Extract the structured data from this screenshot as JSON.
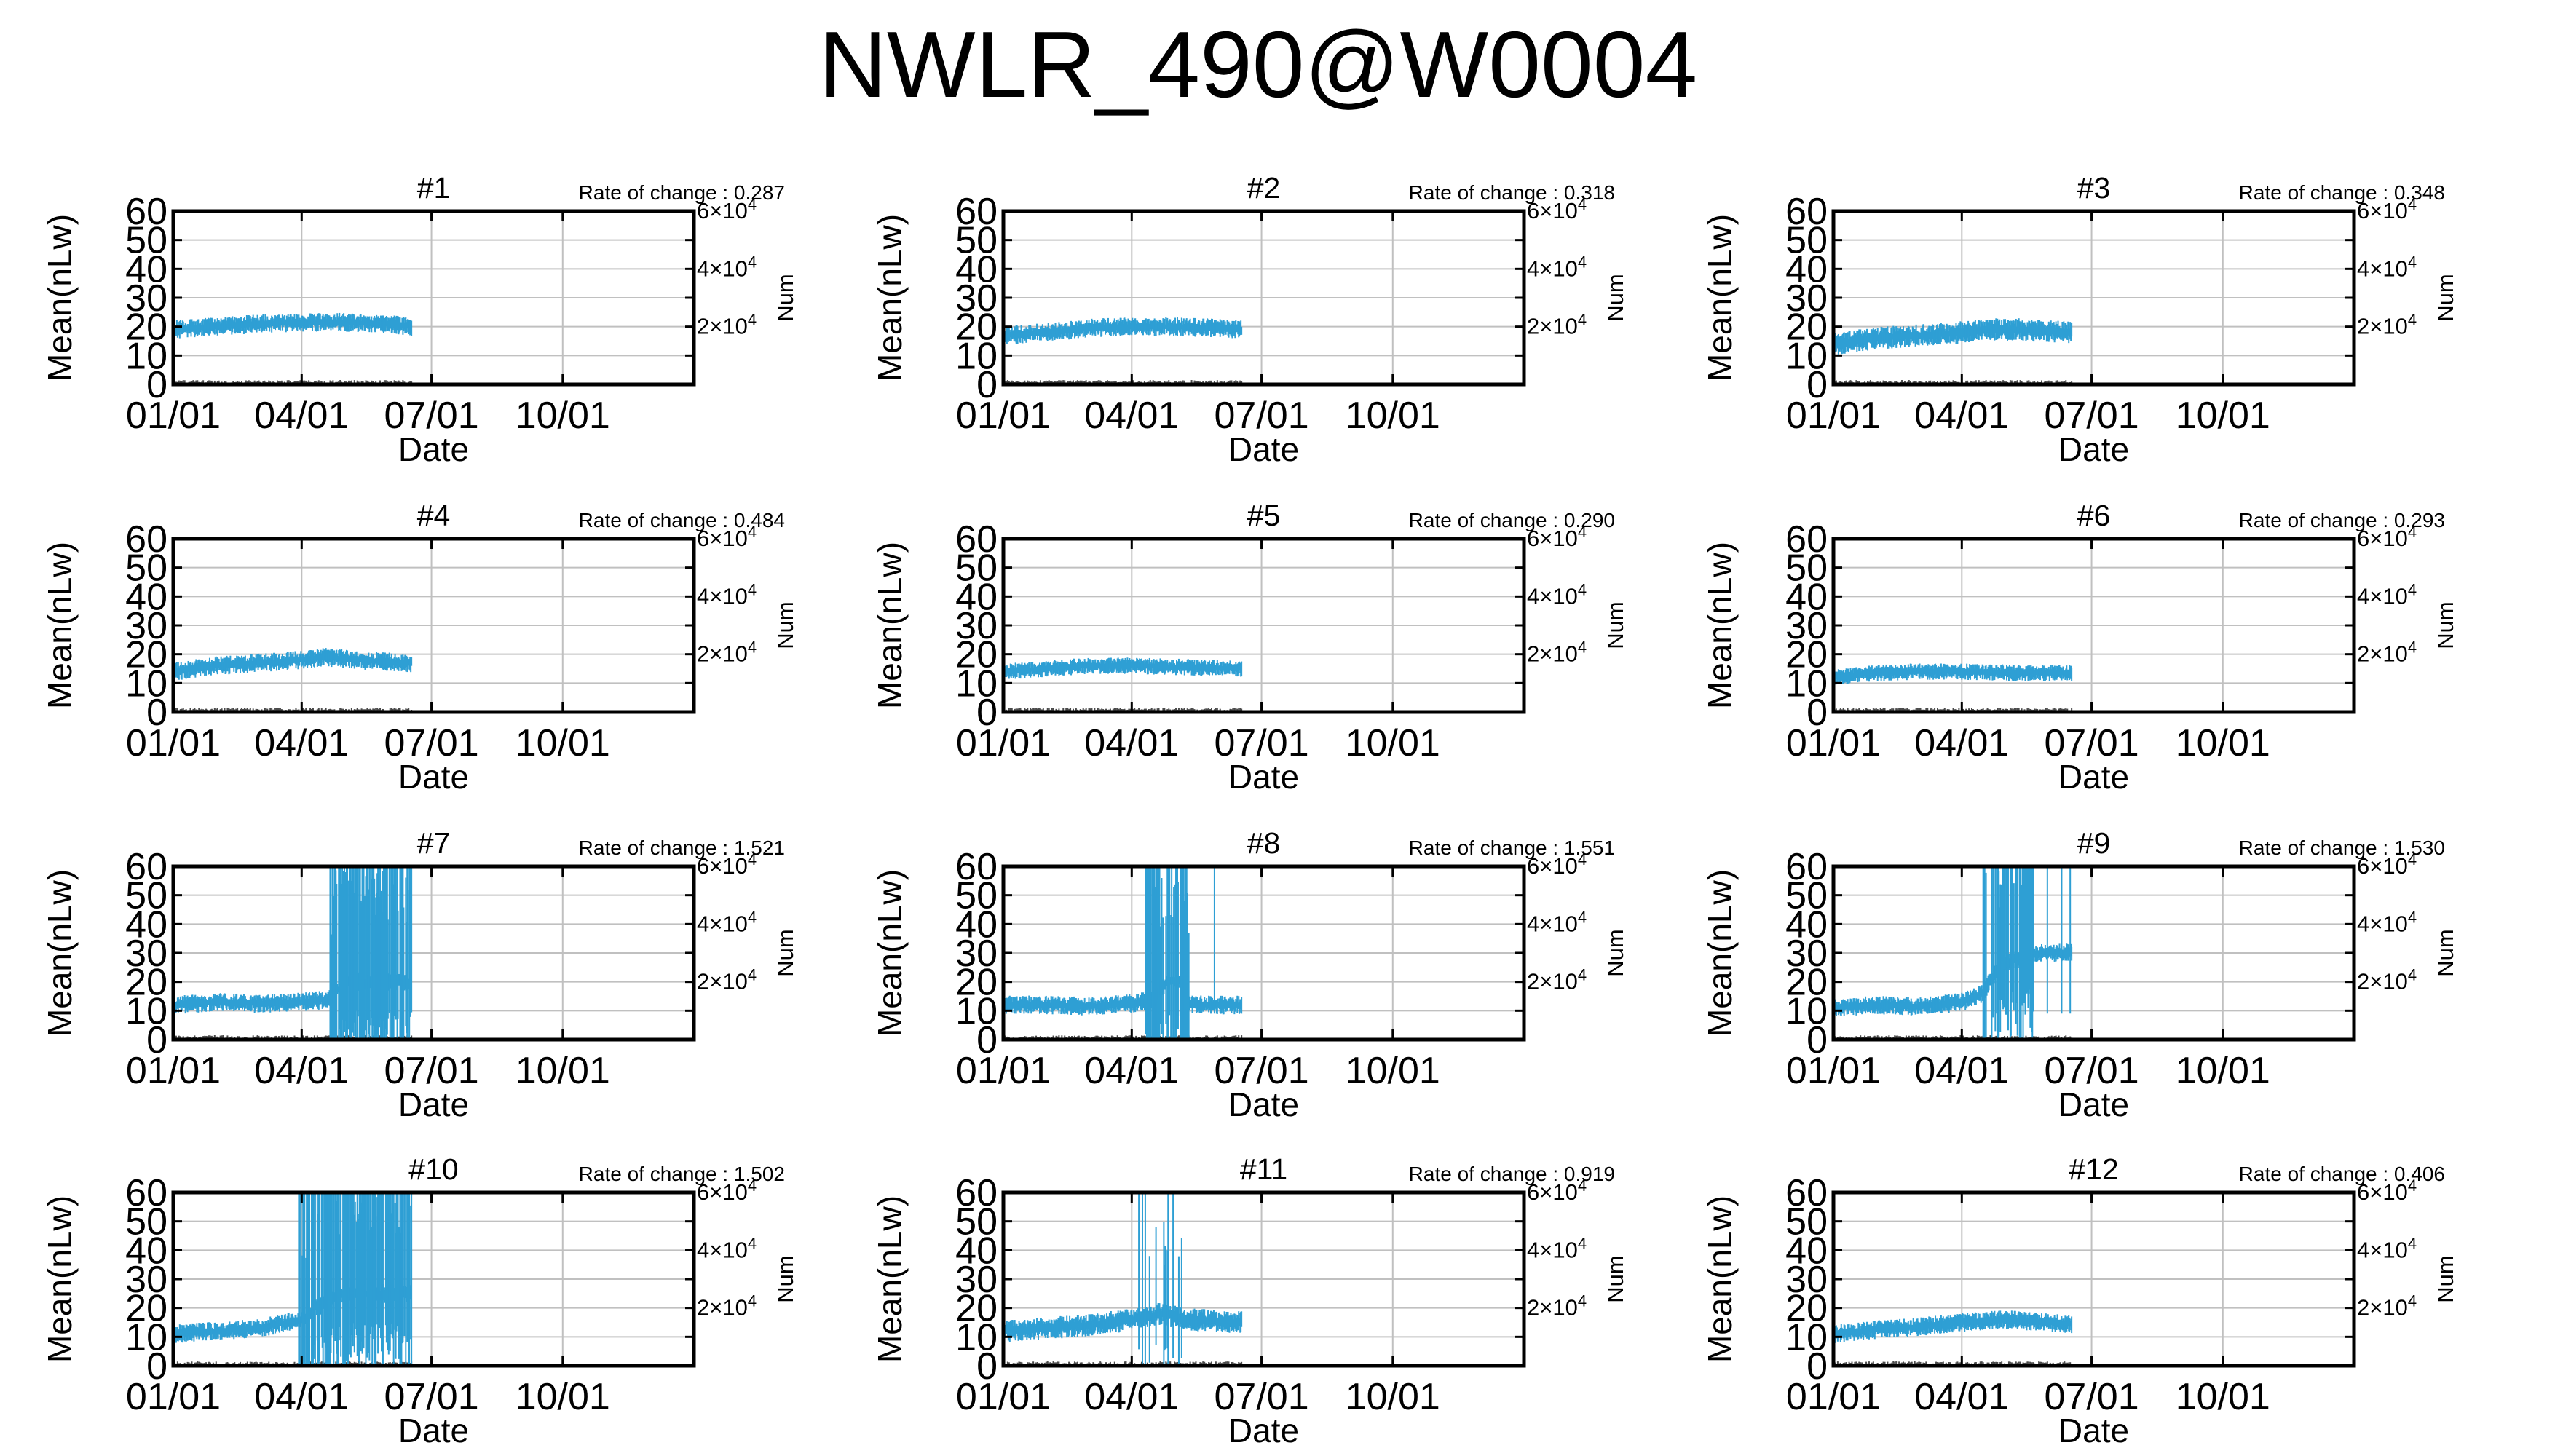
{
  "title": "NWLR_490@W0004",
  "colors": {
    "series": "#2e9fd4",
    "grid": "#c0c0c0",
    "frame": "#000000",
    "count": "#4a4a4a"
  },
  "axes": {
    "ylabel": "Mean(nLw)",
    "xlabel": "Date",
    "y2label": "Num",
    "y_ticks": [
      "0",
      "10",
      "20",
      "30",
      "40",
      "50",
      "60"
    ],
    "x_ticks": [
      "01/01",
      "04/01",
      "07/01",
      "10/01"
    ],
    "y2_ticks": [
      {
        "base": "2×10",
        "exp": "4"
      },
      {
        "base": "4×10",
        "exp": "4"
      },
      {
        "base": "6×10",
        "exp": "4"
      }
    ],
    "rate_prefix": "Rate of change : "
  },
  "chart_data": {
    "type": "line",
    "layout": "4x3 small multiples",
    "ylim": [
      0,
      60
    ],
    "y2lim": [
      0,
      60000
    ],
    "x_range_days": [
      0,
      365
    ],
    "x_ticks_days": [
      0,
      90,
      181,
      273
    ],
    "grid": true,
    "data_days": [
      0,
      167
    ],
    "panels": [
      {
        "name": "#1",
        "rate": "0.287",
        "profile": [
          [
            0,
            19
          ],
          [
            30,
            20
          ],
          [
            60,
            21
          ],
          [
            90,
            21.5
          ],
          [
            120,
            21.5
          ],
          [
            150,
            21
          ],
          [
            167,
            20
          ]
        ],
        "noise": 2.5,
        "spikes": [],
        "spike_window": [
          0,
          0
        ],
        "base_spike_density": 0
      },
      {
        "name": "#2",
        "rate": "0.318",
        "profile": [
          [
            0,
            17
          ],
          [
            30,
            18
          ],
          [
            60,
            19.5
          ],
          [
            90,
            20
          ],
          [
            120,
            20
          ],
          [
            150,
            19.5
          ],
          [
            167,
            19
          ]
        ],
        "noise": 2.5,
        "spikes": [],
        "spike_window": [
          0,
          0
        ],
        "base_spike_density": 0
      },
      {
        "name": "#3",
        "rate": "0.348",
        "profile": [
          [
            0,
            14
          ],
          [
            30,
            16
          ],
          [
            60,
            17
          ],
          [
            90,
            18
          ],
          [
            110,
            19
          ],
          [
            130,
            19
          ],
          [
            167,
            18
          ]
        ],
        "noise": 3,
        "spikes": [],
        "spike_window": [
          0,
          0
        ],
        "base_spike_density": 0
      },
      {
        "name": "#4",
        "rate": "0.484",
        "profile": [
          [
            0,
            14
          ],
          [
            30,
            16
          ],
          [
            60,
            17
          ],
          [
            90,
            18
          ],
          [
            105,
            19
          ],
          [
            130,
            18
          ],
          [
            167,
            17
          ]
        ],
        "noise": 2.5,
        "spikes": [],
        "spike_window": [
          0,
          0
        ],
        "base_spike_density": 0
      },
      {
        "name": "#5",
        "rate": "0.290",
        "profile": [
          [
            0,
            14
          ],
          [
            30,
            15
          ],
          [
            60,
            16
          ],
          [
            90,
            16
          ],
          [
            130,
            15.5
          ],
          [
            167,
            15
          ]
        ],
        "noise": 2.2,
        "spikes": [],
        "spike_window": [
          0,
          0
        ],
        "base_spike_density": 0
      },
      {
        "name": "#6",
        "rate": "0.293",
        "profile": [
          [
            0,
            12
          ],
          [
            30,
            13.5
          ],
          [
            60,
            14
          ],
          [
            90,
            14
          ],
          [
            130,
            13.5
          ],
          [
            167,
            13.5
          ]
        ],
        "noise": 2.2,
        "spikes": [],
        "spike_window": [
          0,
          0
        ],
        "base_spike_density": 0
      },
      {
        "name": "#7",
        "rate": "1.521",
        "profile": [
          [
            0,
            12
          ],
          [
            30,
            13
          ],
          [
            60,
            12.5
          ],
          [
            90,
            13
          ],
          [
            110,
            14
          ],
          [
            120,
            20
          ],
          [
            140,
            20
          ],
          [
            167,
            20
          ]
        ],
        "noise": 2.5,
        "spikes": [],
        "spike_window": [
          110,
          167
        ],
        "base_spike_density": 0.75
      },
      {
        "name": "#8",
        "rate": "1.551",
        "profile": [
          [
            0,
            12
          ],
          [
            30,
            12
          ],
          [
            60,
            11.5
          ],
          [
            90,
            12.5
          ],
          [
            105,
            14
          ],
          [
            115,
            20
          ],
          [
            125,
            20
          ],
          [
            130,
            12
          ]
        ],
        "noise": 2.5,
        "spikes": [
          [
            148,
            60
          ]
        ],
        "spike_window": [
          100,
          130
        ],
        "base_spike_density": 0.7
      },
      {
        "name": "#9",
        "rate": "1.530",
        "profile": [
          [
            0,
            11
          ],
          [
            30,
            12
          ],
          [
            60,
            11.5
          ],
          [
            90,
            13
          ],
          [
            105,
            16
          ],
          [
            115,
            25
          ],
          [
            140,
            30
          ],
          [
            167,
            30
          ]
        ],
        "noise": 2.5,
        "spikes": [
          [
            150,
            60
          ],
          [
            160,
            60
          ],
          [
            166,
            60
          ]
        ],
        "spike_window": [
          105,
          140
        ],
        "base_spike_density": 0.7
      },
      {
        "name": "#10",
        "rate": "1.502",
        "profile": [
          [
            0,
            11
          ],
          [
            30,
            12
          ],
          [
            60,
            13
          ],
          [
            90,
            16
          ],
          [
            100,
            20
          ],
          [
            120,
            25
          ],
          [
            167,
            25
          ]
        ],
        "noise": 2.5,
        "spikes": [],
        "spike_window": [
          88,
          167
        ],
        "base_spike_density": 0.8
      },
      {
        "name": "#11",
        "rate": "0.919",
        "profile": [
          [
            0,
            12
          ],
          [
            30,
            13
          ],
          [
            60,
            14
          ],
          [
            90,
            16
          ],
          [
            110,
            18
          ],
          [
            130,
            16
          ],
          [
            167,
            15
          ]
        ],
        "noise": 3,
        "spikes": [
          [
            107,
            48
          ],
          [
            115,
            40
          ],
          [
            113,
            35
          ]
        ],
        "spike_window": [
          95,
          125
        ],
        "base_spike_density": 0.15
      },
      {
        "name": "#12",
        "rate": "0.406",
        "profile": [
          [
            0,
            11
          ],
          [
            30,
            12.5
          ],
          [
            60,
            13.5
          ],
          [
            90,
            15
          ],
          [
            120,
            16
          ],
          [
            150,
            15
          ],
          [
            167,
            14.5
          ]
        ],
        "noise": 2.5,
        "spikes": [],
        "spike_window": [
          0,
          0
        ],
        "base_spike_density": 0
      }
    ]
  }
}
